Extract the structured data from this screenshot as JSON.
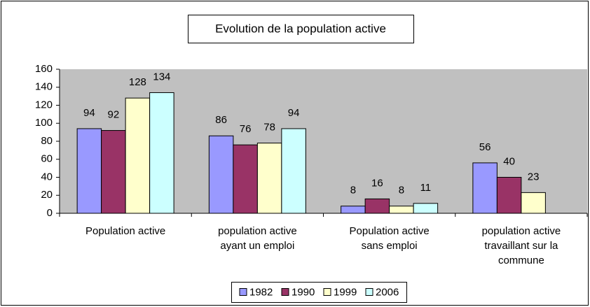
{
  "chart_data": {
    "type": "bar",
    "title": "Evolution de la population active",
    "categories": [
      "Population active",
      "population active ayant un emploi",
      "Population active sans emploi",
      "population active travaillant sur la commune"
    ],
    "series": [
      {
        "name": "1982",
        "color": "#9999FF",
        "values": [
          94,
          86,
          8,
          56
        ]
      },
      {
        "name": "1990",
        "color": "#993366",
        "values": [
          92,
          76,
          16,
          40
        ]
      },
      {
        "name": "1999",
        "color": "#FFFFCC",
        "values": [
          128,
          78,
          8,
          23
        ]
      },
      {
        "name": "2006",
        "color": "#CCFFFF",
        "values": [
          134,
          94,
          11,
          null
        ]
      }
    ],
    "ylim": [
      0,
      160
    ],
    "yticks": [
      0,
      20,
      40,
      60,
      80,
      100,
      120,
      140,
      160
    ],
    "grid": false,
    "legend": "bottom",
    "plot_background": "#C0C0C0"
  }
}
